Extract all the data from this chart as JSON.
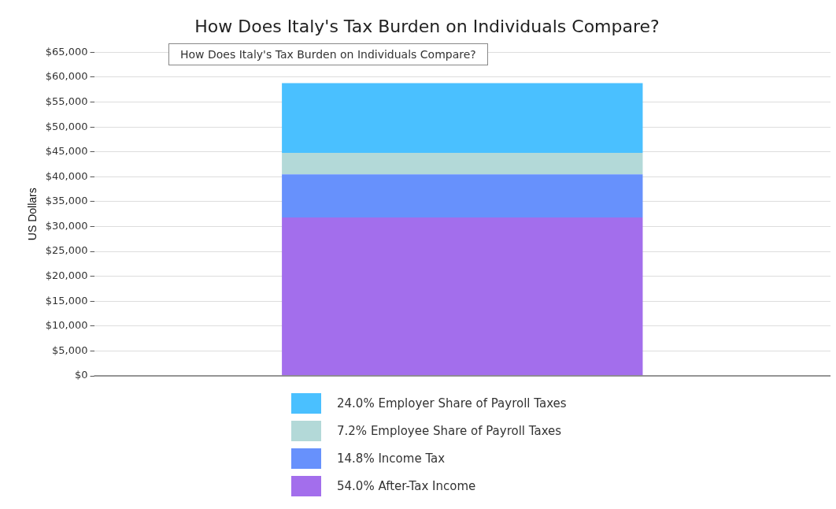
{
  "chart_data": {
    "type": "bar",
    "title": "How Does Italy's Tax Burden on Individuals Compare?",
    "ylabel": "US Dollars",
    "annotations": [
      "How Does Italy's Tax Burden on Individuals Compare?"
    ],
    "categories": [
      null
    ],
    "stacked": true,
    "ylim": [
      0,
      65000
    ],
    "yticks": [
      {
        "value": 0,
        "label": "$0"
      },
      {
        "value": 5000,
        "label": "$5,000"
      },
      {
        "value": 10000,
        "label": "$10,000"
      },
      {
        "value": 15000,
        "label": "$15,000"
      },
      {
        "value": 20000,
        "label": "$20,000"
      },
      {
        "value": 25000,
        "label": "$25,000"
      },
      {
        "value": 30000,
        "label": "$30,000"
      },
      {
        "value": 35000,
        "label": "$35,000"
      },
      {
        "value": 40000,
        "label": "$40,000"
      },
      {
        "value": 45000,
        "label": "$45,000"
      },
      {
        "value": 50000,
        "label": "$50,000"
      },
      {
        "value": 55000,
        "label": "$55,000"
      },
      {
        "value": 60000,
        "label": "$60,000"
      },
      {
        "value": 65000,
        "label": "$65,000"
      }
    ],
    "grid": "y",
    "legend": "bottom",
    "series": [
      {
        "name": "54.0% After-Tax Income",
        "color": "#a36eec",
        "values": [
          31800
        ]
      },
      {
        "name": "14.8% Income Tax",
        "color": "#6791fc",
        "values": [
          8700
        ]
      },
      {
        "name": "7.2% Employee Share of Payroll Taxes",
        "color": "#b3d9d8",
        "values": [
          4300
        ]
      },
      {
        "name": "24.0% Employer Share of Payroll Taxes",
        "color": "#4ac0ff",
        "values": [
          14000
        ]
      }
    ]
  }
}
